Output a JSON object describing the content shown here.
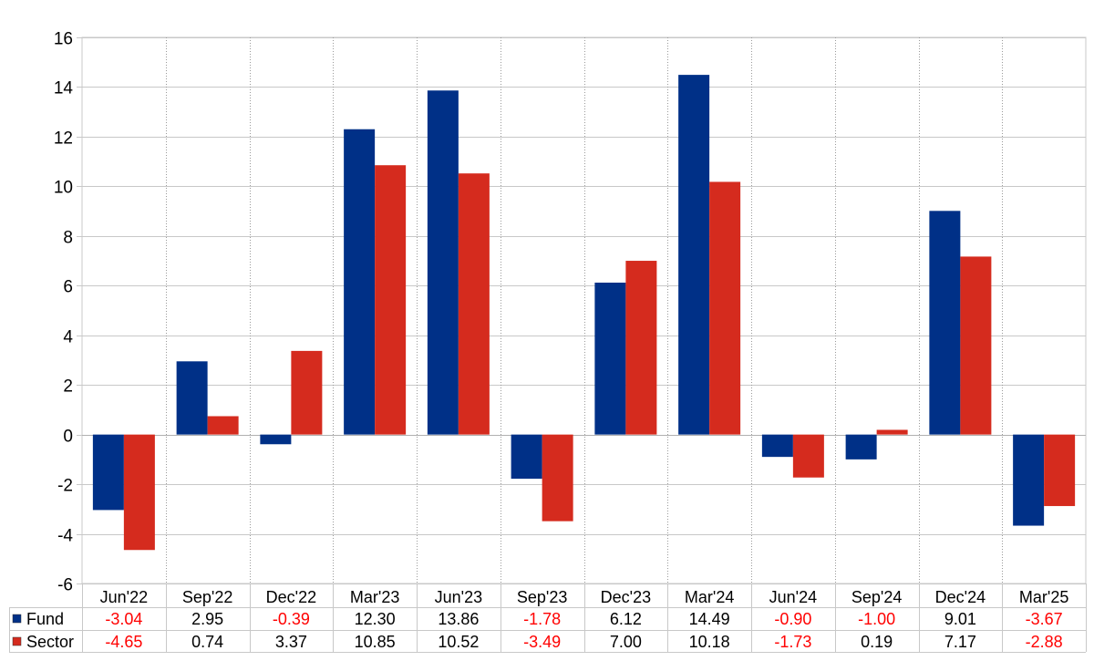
{
  "chart_data": {
    "type": "bar",
    "categories": [
      "Jun'22",
      "Sep'22",
      "Dec'22",
      "Mar'23",
      "Jun'23",
      "Sep'23",
      "Dec'23",
      "Mar'24",
      "Jun'24",
      "Sep'24",
      "Dec'24",
      "Mar'25"
    ],
    "series": [
      {
        "name": "Fund",
        "color": "#003087",
        "values": [
          -3.04,
          2.95,
          -0.39,
          12.3,
          13.86,
          -1.78,
          6.12,
          14.49,
          -0.9,
          -1.0,
          9.01,
          -3.67
        ],
        "labels": [
          "-3.04",
          "2.95",
          "-0.39",
          "12.30",
          "13.86",
          "-1.78",
          "6.12",
          "14.49",
          "-0.90",
          "-1.00",
          "9.01",
          "-3.67"
        ]
      },
      {
        "name": "Sector",
        "color": "#d52b1e",
        "values": [
          -4.65,
          0.74,
          3.37,
          10.85,
          10.52,
          -3.49,
          7.0,
          10.18,
          -1.73,
          0.19,
          7.17,
          -2.88
        ],
        "labels": [
          "-4.65",
          "0.74",
          "3.37",
          "10.85",
          "10.52",
          "-3.49",
          "7.00",
          "10.18",
          "-1.73",
          "0.19",
          "7.17",
          "-2.88"
        ]
      }
    ],
    "ylim": [
      -6,
      16
    ],
    "yticks": [
      "-6",
      "-4",
      "-2",
      "0",
      "2",
      "4",
      "6",
      "8",
      "10",
      "12",
      "14",
      "16"
    ],
    "grid": true,
    "negative_value_color": "#ff0000",
    "positive_value_color": "#000000",
    "data_table": true
  }
}
